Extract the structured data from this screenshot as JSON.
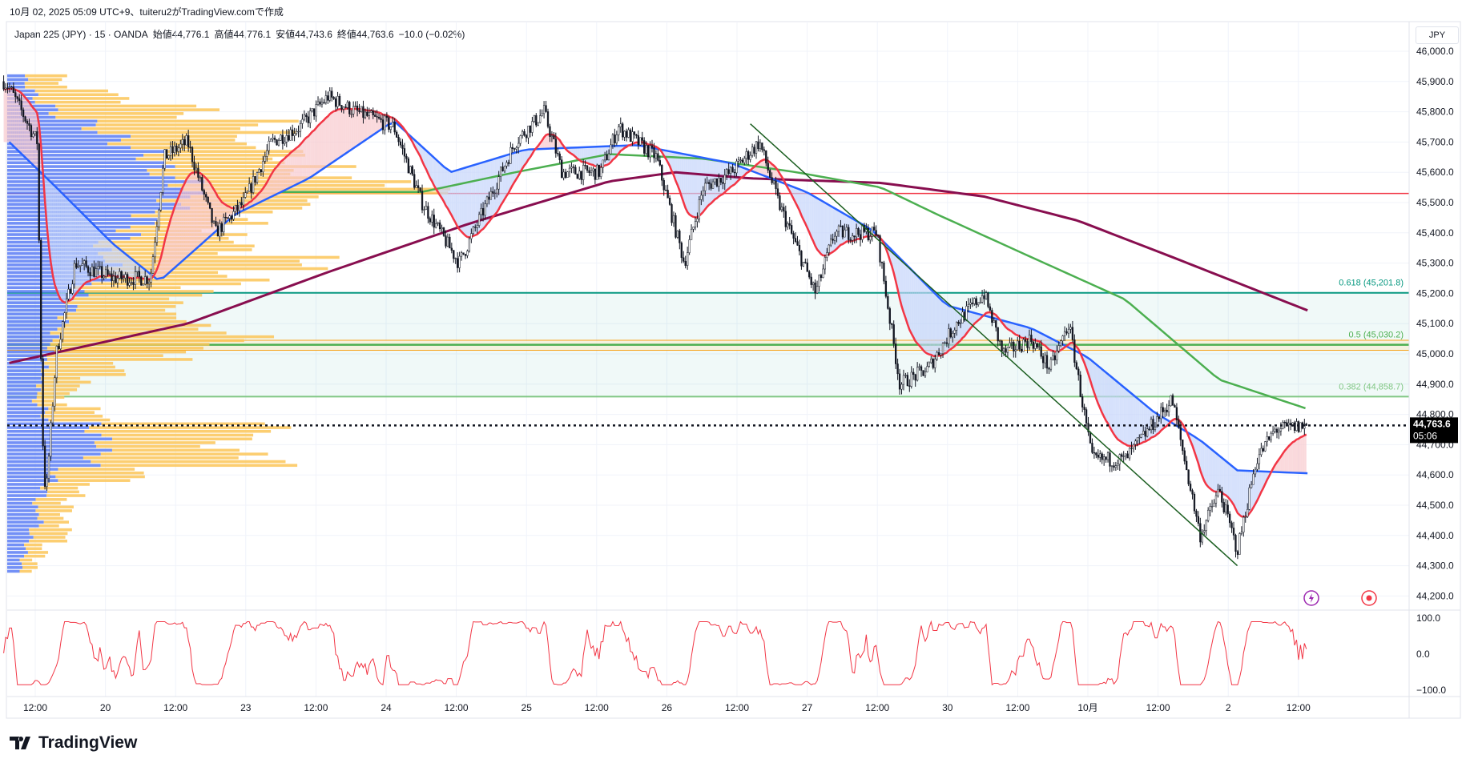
{
  "header": {
    "created_by": "10月 02, 2025 05:09 UTC+9、tuiteru2がTradingView.comで作成",
    "symbol": "Japan 225 (JPY) · 15 · OANDA",
    "open": "始値44,776.1",
    "high": "高値44,776.1",
    "low": "安値44,743.6",
    "close": "終値44,763.6",
    "change": "−10.0 (−0.02%)"
  },
  "currency_button": "JPY",
  "last_price": {
    "value": 44763.6,
    "label": "44,763.6",
    "countdown": "05:06"
  },
  "logo_text": "TradingView",
  "colors": {
    "candle": "#131722",
    "ema_fast": "#f23645",
    "ma_blue": "#2962ff",
    "ma_green": "#4caf50",
    "ma_maroon": "#880e4f",
    "fib_0618": "#089981",
    "fib_05": "#4caf50",
    "fib_0382": "#81c784",
    "resistance": "#f23645",
    "trendline": "#1b5e20",
    "vp_up": "#5b7cf5",
    "vp_down": "#fbc658",
    "oscillator": "#f23645"
  },
  "chart_data": {
    "type": "candlestick",
    "title": "Japan 225 (JPY) 15m",
    "x_unit": "half-days from first 12:00 label",
    "x_ticks": [
      "12:00",
      "20",
      "12:00",
      "23",
      "12:00",
      "24",
      "12:00",
      "25",
      "12:00",
      "26",
      "12:00",
      "27",
      "12:00",
      "30",
      "12:00",
      "10月",
      "12:00",
      "2",
      "12:00"
    ],
    "y_range": [
      44150,
      46050
    ],
    "y_ticks": [
      "46,000.0",
      "45,900.0",
      "45,800.0",
      "45,700.0",
      "45,600.0",
      "45,500.0",
      "45,400.0",
      "45,300.0",
      "45,200.0",
      "45,100.0",
      "45,000.0",
      "44,900.0",
      "44,800.0",
      "44,700.0",
      "44,600.0",
      "44,500.0",
      "44,400.0",
      "44,300.0",
      "44,200.0"
    ],
    "price_path": [
      [
        -0.45,
        45900
      ],
      [
        -0.37,
        45880
      ],
      [
        0.03,
        45700
      ],
      [
        0.1,
        44750
      ],
      [
        0.15,
        44520
      ],
      [
        0.3,
        45000
      ],
      [
        0.57,
        45300
      ],
      [
        1.1,
        45250
      ],
      [
        1.64,
        45250
      ],
      [
        1.84,
        45650
      ],
      [
        2.17,
        45700
      ],
      [
        2.57,
        45400
      ],
      [
        2.97,
        45500
      ],
      [
        3.37,
        45700
      ],
      [
        3.77,
        45750
      ],
      [
        4.17,
        45850
      ],
      [
        4.57,
        45800
      ],
      [
        5.11,
        45750
      ],
      [
        5.51,
        45500
      ],
      [
        6.04,
        45300
      ],
      [
        6.44,
        45500
      ],
      [
        6.84,
        45700
      ],
      [
        7.25,
        45800
      ],
      [
        7.51,
        45600
      ],
      [
        8.05,
        45600
      ],
      [
        8.31,
        45750
      ],
      [
        8.85,
        45650
      ],
      [
        9.25,
        45300
      ],
      [
        9.52,
        45550
      ],
      [
        9.92,
        45600
      ],
      [
        10.32,
        45700
      ],
      [
        10.59,
        45500
      ],
      [
        11.12,
        45200
      ],
      [
        11.39,
        45400
      ],
      [
        11.99,
        45400
      ],
      [
        12.32,
        44900
      ],
      [
        12.72,
        44950
      ],
      [
        13.12,
        45100
      ],
      [
        13.52,
        45200
      ],
      [
        13.79,
        45000
      ],
      [
        14.19,
        45050
      ],
      [
        14.46,
        44950
      ],
      [
        14.73,
        45100
      ],
      [
        15.06,
        44650
      ],
      [
        15.53,
        44650
      ],
      [
        16.2,
        44850
      ],
      [
        16.6,
        44400
      ],
      [
        16.87,
        44550
      ],
      [
        17.13,
        44350
      ],
      [
        17.4,
        44650
      ],
      [
        17.67,
        44750
      ],
      [
        18.13,
        44763.6
      ]
    ],
    "ma_blue": [
      [
        -0.37,
        45700
      ],
      [
        0.3,
        45550
      ],
      [
        1.1,
        45365
      ],
      [
        1.77,
        45240
      ],
      [
        2.84,
        45460
      ],
      [
        3.9,
        45580
      ],
      [
        5.11,
        45770
      ],
      [
        5.91,
        45600
      ],
      [
        6.98,
        45675
      ],
      [
        8.58,
        45690
      ],
      [
        9.92,
        45630
      ],
      [
        10.99,
        45535
      ],
      [
        11.92,
        45410
      ],
      [
        12.99,
        45160
      ],
      [
        14.19,
        45085
      ],
      [
        14.99,
        44990
      ],
      [
        15.93,
        44810
      ],
      [
        16.6,
        44715
      ],
      [
        17.13,
        44615
      ],
      [
        18.17,
        44605
      ]
    ],
    "ma_green": [
      [
        3.5,
        45535
      ],
      [
        5.51,
        45535
      ],
      [
        6.84,
        45600
      ],
      [
        8.18,
        45660
      ],
      [
        9.52,
        45645
      ],
      [
        10.85,
        45600
      ],
      [
        12.05,
        45550
      ],
      [
        12.86,
        45460
      ],
      [
        14.19,
        45320
      ],
      [
        15.53,
        45180
      ],
      [
        16.87,
        44915
      ],
      [
        18.17,
        44815
      ]
    ],
    "ma_maroon": [
      [
        -0.37,
        44970
      ],
      [
        2.17,
        45100
      ],
      [
        4.17,
        45270
      ],
      [
        6.18,
        45430
      ],
      [
        8.18,
        45570
      ],
      [
        9.12,
        45600
      ],
      [
        10.19,
        45580
      ],
      [
        12.05,
        45565
      ],
      [
        13.52,
        45520
      ],
      [
        14.86,
        45440
      ],
      [
        16.2,
        45320
      ],
      [
        18.17,
        45140
      ]
    ],
    "horizontal_levels": [
      {
        "name": "resistance",
        "price": 45530
      },
      {
        "name": "fib-0.618",
        "price": 45201.8,
        "label": "0.618 (45,201.8)"
      },
      {
        "name": "upper-orange",
        "price": 45045
      },
      {
        "name": "fib-0.5",
        "price": 45030.2,
        "label": "0.5 (45,030.2)"
      },
      {
        "name": "lower-orange",
        "price": 45012
      },
      {
        "name": "fib-0.382",
        "price": 44858.7,
        "label": "0.382 (44,858.7)"
      }
    ],
    "trendline": [
      [
        10.19,
        45760
      ],
      [
        17.13,
        44300
      ]
    ],
    "volume_profile": [
      [
        45900,
        20,
        40
      ],
      [
        45850,
        30,
        90
      ],
      [
        45800,
        50,
        150
      ],
      [
        45750,
        90,
        190
      ],
      [
        45700,
        120,
        130
      ],
      [
        45650,
        150,
        150
      ],
      [
        45600,
        160,
        170
      ],
      [
        45550,
        190,
        250
      ],
      [
        45500,
        180,
        140
      ],
      [
        45450,
        150,
        110
      ],
      [
        45400,
        130,
        100
      ],
      [
        45350,
        100,
        150
      ],
      [
        45300,
        110,
        220
      ],
      [
        45250,
        100,
        150
      ],
      [
        45200,
        80,
        120
      ],
      [
        45150,
        70,
        110
      ],
      [
        45100,
        60,
        140
      ],
      [
        45050,
        50,
        200
      ],
      [
        45000,
        45,
        145
      ],
      [
        44950,
        40,
        80
      ],
      [
        44900,
        35,
        45
      ],
      [
        44850,
        30,
        30
      ],
      [
        44800,
        40,
        60
      ],
      [
        44750,
        90,
        190
      ],
      [
        44700,
        100,
        130
      ],
      [
        44650,
        90,
        190
      ],
      [
        44600,
        50,
        90
      ],
      [
        44550,
        40,
        40
      ],
      [
        44500,
        30,
        35
      ],
      [
        44450,
        35,
        25
      ],
      [
        44400,
        25,
        40
      ],
      [
        44350,
        20,
        20
      ],
      [
        44300,
        15,
        15
      ]
    ],
    "oscillator": {
      "range": [
        -100,
        100
      ],
      "ticks": [
        "100.0",
        "0.0",
        "−100.0"
      ]
    }
  }
}
